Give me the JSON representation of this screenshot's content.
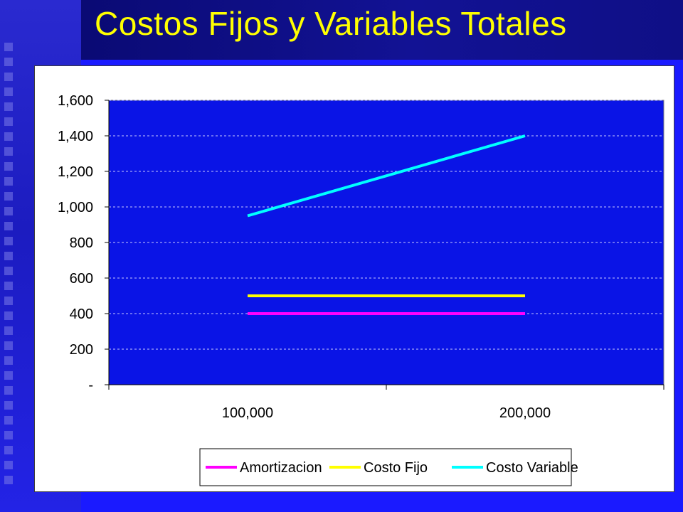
{
  "slide": {
    "title": "Costos Fijos y Variables Totales"
  },
  "colors": {
    "background": "#1a1aff",
    "plot_area": "#0a14e6",
    "title_text": "#ffff00"
  },
  "chart_data": {
    "type": "line",
    "categories": [
      "100,000",
      "200,000"
    ],
    "series": [
      {
        "name": "Amortizacion",
        "color": "#ff00ff",
        "values": [
          400,
          400
        ]
      },
      {
        "name": "Costo Fijo",
        "color": "#ffff00",
        "values": [
          500,
          500
        ]
      },
      {
        "name": "Costo Variable",
        "color": "#00ffff",
        "values": [
          950,
          1400
        ]
      }
    ],
    "ylim": [
      0,
      1600
    ],
    "yticks": [
      0,
      200,
      400,
      600,
      800,
      1000,
      1200,
      1400,
      1600
    ],
    "ytick_labels": [
      "-",
      "200",
      "400",
      "600",
      "800",
      "1,000",
      "1,200",
      "1,400",
      "1,600"
    ],
    "grid": "horizontal-dashed",
    "legend_position": "bottom"
  }
}
